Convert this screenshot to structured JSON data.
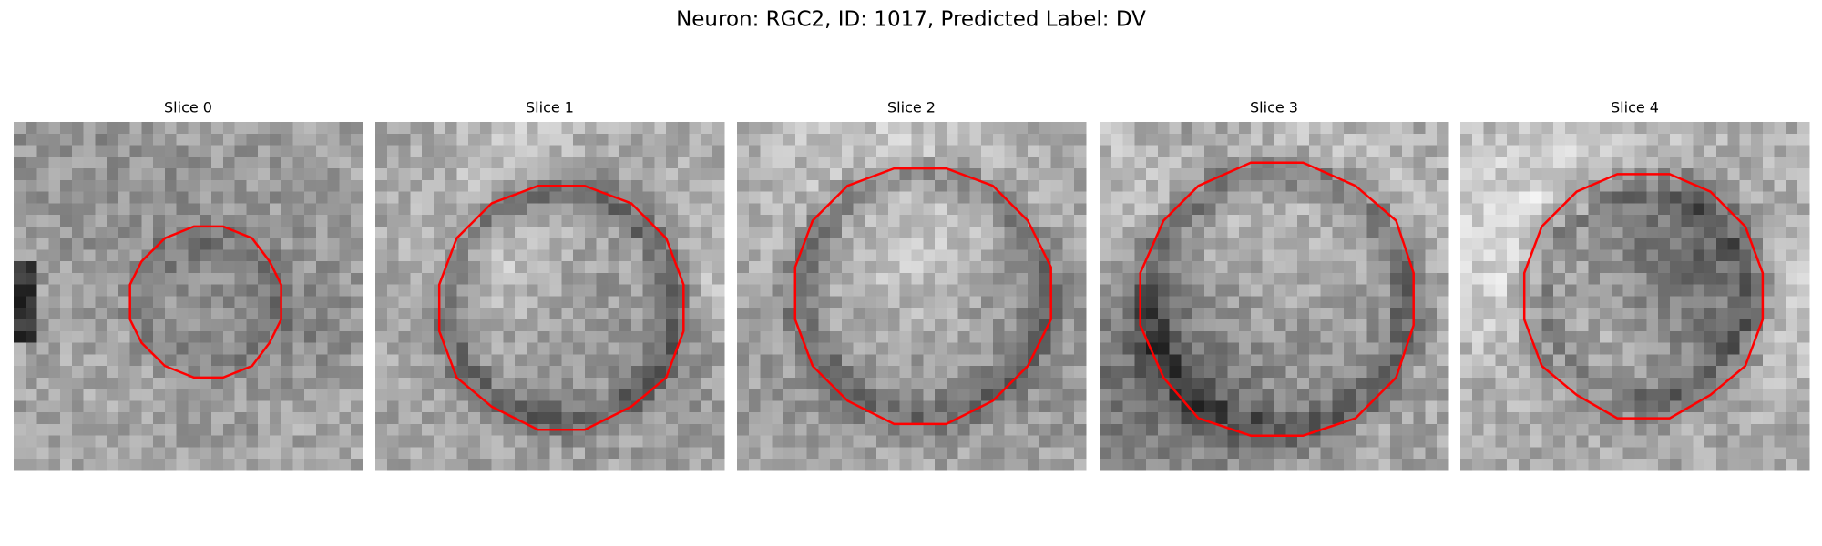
{
  "title": "Neuron: RGC2, ID: 1017, Predicted Label: DV",
  "panels": [
    {
      "title": "Slice 0"
    },
    {
      "title": "Slice 1"
    },
    {
      "title": "Slice 2"
    },
    {
      "title": "Slice 3"
    },
    {
      "title": "Slice 4"
    }
  ]
}
